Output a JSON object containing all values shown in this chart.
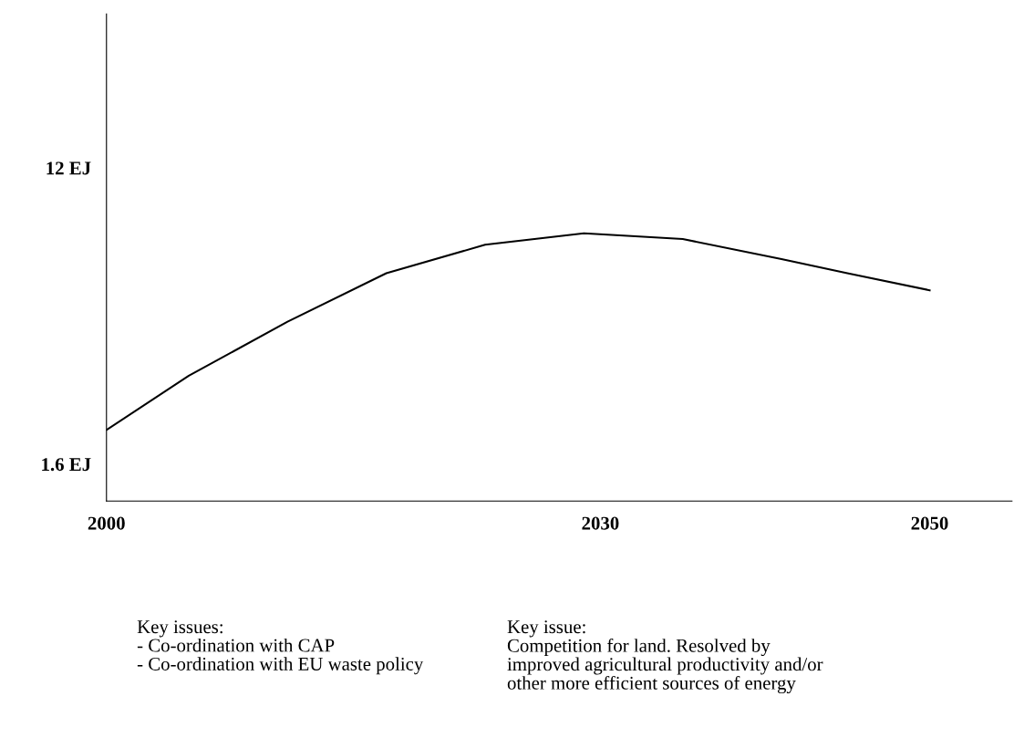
{
  "chart_data": {
    "type": "line",
    "x": [
      2000,
      2005,
      2011,
      2017,
      2023,
      2029,
      2035,
      2041,
      2045,
      2050
    ],
    "series": [
      {
        "color": "#000000",
        "values": [
          2.8,
          4.7,
          6.6,
          8.3,
          9.3,
          9.7,
          9.5,
          8.8,
          8.3,
          7.7
        ]
      }
    ],
    "xlim": [
      2000,
      2055
    ],
    "xticks": [
      2000,
      2030,
      2050
    ],
    "ylim": [
      0.3,
      17.4
    ],
    "yticks": [
      {
        "value": 1.6,
        "label": "1.6 EJ"
      },
      {
        "value": 12,
        "label": "12 EJ"
      }
    ],
    "grid": false,
    "legend": false,
    "marker": "none",
    "line_style": "solid",
    "annotations": [
      "Key issues:\n- Co-ordination with CAP\n- Co-ordination with EU waste policy",
      "Key issue:\nCompetition for land. Resolved by\nimproved agricultural productivity and/or\nother more efficient sources of energy"
    ]
  }
}
